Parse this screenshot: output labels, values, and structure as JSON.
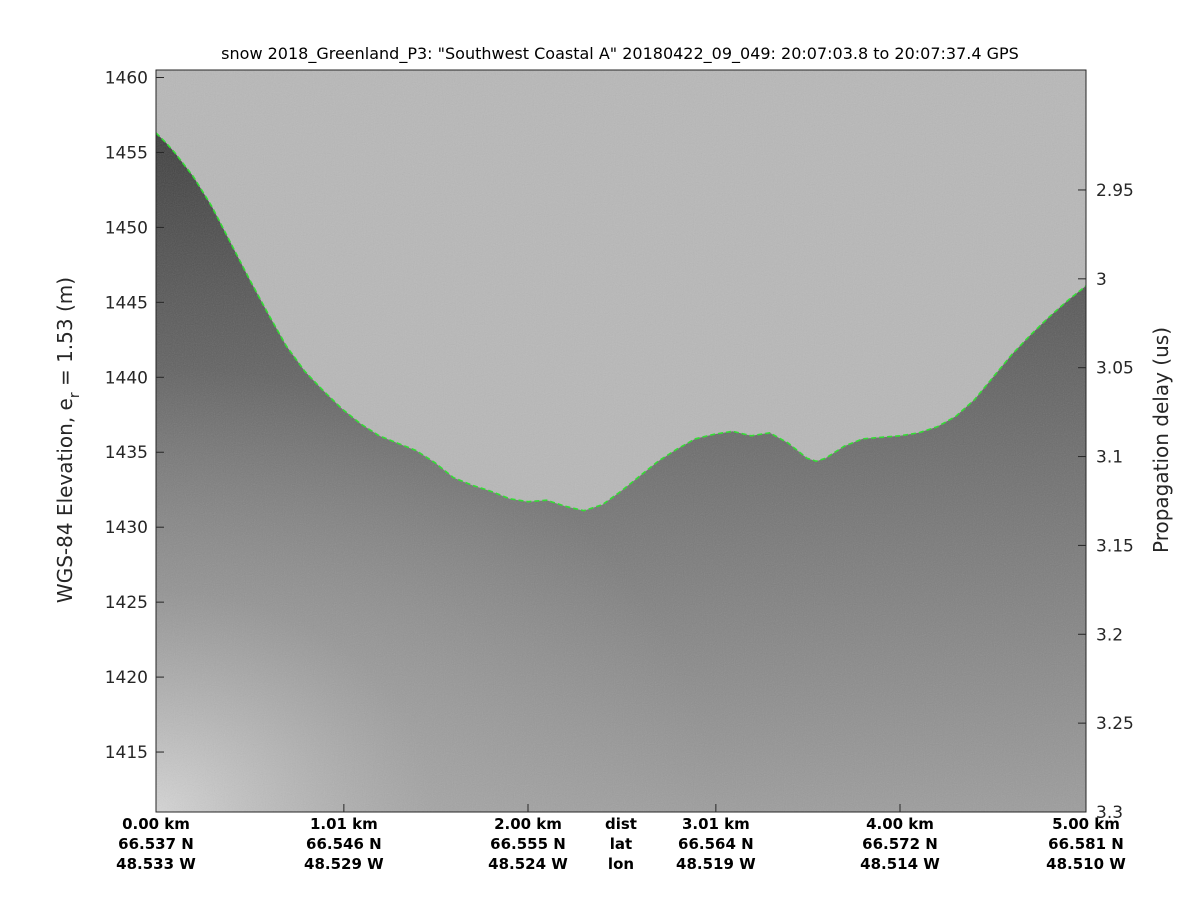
{
  "colors": {
    "background": "#ffffff",
    "surface_above": "#b8b8b8",
    "firn_dark": "#4a4a4a",
    "trace_line": "#33dd33",
    "axis": "#262626"
  },
  "chart_data": {
    "type": "radar-echogram",
    "title": "snow 2018_Greenland_P3: \"Southwest Coastal A\"  20180422_09_049: 20:07:03.8 to 20:07:37.4 GPS",
    "ylabel_left": "WGS-84 Elevation, e",
    "ylabel_left_sub": "r",
    "ylabel_left_suffix": " = 1.53 (m)",
    "ylabel_right": "Propagation delay (us)",
    "ylim": [
      1411,
      1460.5
    ],
    "y_ticks": [
      "1460",
      "1455",
      "1450",
      "1445",
      "1440",
      "1435",
      "1430",
      "1425",
      "1420",
      "1415"
    ],
    "y_tick_values": [
      1460,
      1455,
      1450,
      1445,
      1440,
      1435,
      1430,
      1425,
      1420,
      1415
    ],
    "right_range": [
      2.8825,
      3.3
    ],
    "right_ticks": [
      "2.95",
      "3",
      "3.05",
      "3.1",
      "3.15",
      "3.2",
      "3.25",
      "3.3"
    ],
    "right_tick_values": [
      2.95,
      3.0,
      3.05,
      3.1,
      3.15,
      3.2,
      3.25,
      3.3
    ],
    "xlim": [
      0,
      5.0
    ],
    "x_tick_values": [
      0.0,
      1.01,
      2.0,
      3.01,
      4.0,
      5.0
    ],
    "x_labels": {
      "dist": [
        "0.00 km",
        "1.01 km",
        "2.00 km",
        "3.01 km",
        "4.00 km",
        "5.00 km"
      ],
      "lat": [
        "66.537 N",
        "66.546 N",
        "66.555 N",
        "66.564 N",
        "66.572 N",
        "66.581 N"
      ],
      "lon": [
        "48.533 W",
        "48.529 W",
        "48.524 W",
        "48.519 W",
        "48.514 W",
        "48.510 W"
      ]
    },
    "x_row_names": [
      "dist",
      "lat",
      "lon"
    ],
    "x_row_names_at": 2.5,
    "surface_trace": {
      "x": [
        0,
        0.05,
        0.1,
        0.2,
        0.3,
        0.4,
        0.5,
        0.6,
        0.7,
        0.8,
        0.9,
        1.0,
        1.1,
        1.2,
        1.3,
        1.4,
        1.5,
        1.6,
        1.7,
        1.8,
        1.9,
        2.0,
        2.1,
        2.2,
        2.3,
        2.4,
        2.5,
        2.6,
        2.7,
        2.8,
        2.9,
        3.0,
        3.1,
        3.2,
        3.3,
        3.4,
        3.5,
        3.55,
        3.6,
        3.7,
        3.8,
        3.9,
        4.0,
        4.1,
        4.2,
        4.3,
        4.4,
        4.5,
        4.6,
        4.7,
        4.8,
        4.9,
        5.0
      ],
      "y": [
        1456.3,
        1455.7,
        1455.0,
        1453.4,
        1451.4,
        1449.0,
        1446.6,
        1444.3,
        1442.1,
        1440.4,
        1439.1,
        1437.9,
        1436.9,
        1436.1,
        1435.6,
        1435.1,
        1434.3,
        1433.3,
        1432.8,
        1432.4,
        1431.9,
        1431.7,
        1431.8,
        1431.4,
        1431.1,
        1431.5,
        1432.4,
        1433.4,
        1434.4,
        1435.2,
        1435.9,
        1436.2,
        1436.4,
        1436.1,
        1436.3,
        1435.6,
        1434.6,
        1434.4,
        1434.6,
        1435.4,
        1435.9,
        1436.0,
        1436.1,
        1436.3,
        1436.7,
        1437.4,
        1438.5,
        1440.0,
        1441.5,
        1442.8,
        1444.0,
        1445.1,
        1446.1
      ]
    }
  }
}
